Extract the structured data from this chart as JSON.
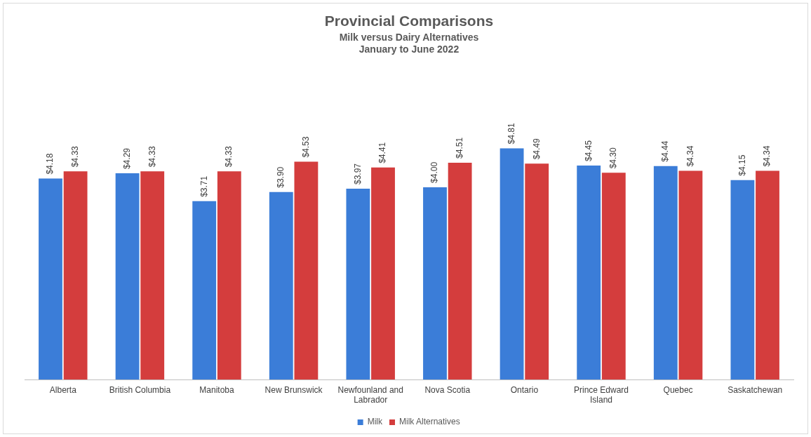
{
  "chart_data": {
    "type": "bar",
    "title": "Provincial Comparisons",
    "subtitle": "Milk versus Dairy Alternatives\nJanuary to June 2022",
    "categories": [
      "Alberta",
      "British Columbia",
      "Manitoba",
      "New Brunswick",
      "Newfounland and Labrador",
      "Nova Scotia",
      "Ontario",
      "Prince Edward Island",
      "Quebec",
      "Saskatchewan"
    ],
    "series": [
      {
        "name": "Milk",
        "color": "#3b7dd8",
        "values": [
          4.18,
          4.29,
          3.71,
          3.9,
          3.97,
          4.0,
          4.81,
          4.45,
          4.44,
          4.15
        ],
        "value_labels": [
          "$4.18",
          "$4.29",
          "$3.71",
          "$3.90",
          "$3.97",
          "$4.00",
          "$4.81",
          "$4.45",
          "$4.44",
          "$4.15"
        ]
      },
      {
        "name": "Milk Alternatives",
        "color": "#d43d3d",
        "values": [
          4.33,
          4.33,
          4.33,
          4.53,
          4.41,
          4.51,
          4.49,
          4.3,
          4.34,
          4.34
        ],
        "value_labels": [
          "$4.33",
          "$4.33",
          "$4.33",
          "$4.53",
          "$4.41",
          "$4.51",
          "$4.49",
          "$4.30",
          "$4.34",
          "$4.34"
        ]
      }
    ],
    "legend": "bottom",
    "grid": false
  }
}
